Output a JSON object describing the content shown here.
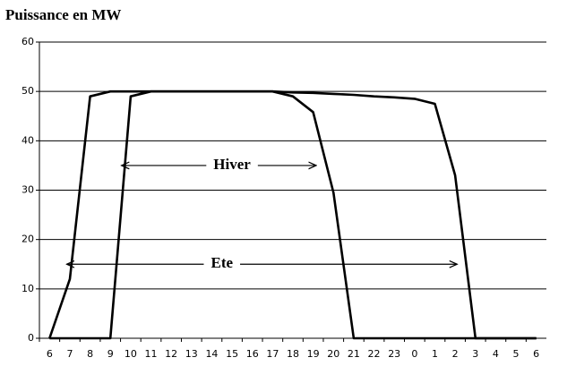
{
  "chart_data": {
    "type": "line",
    "title": "Puissance en MW",
    "categories": [
      "6",
      "7",
      "8",
      "9",
      "10",
      "11",
      "12",
      "13",
      "14",
      "15",
      "16",
      "17",
      "18",
      "19",
      "20",
      "21",
      "22",
      "23",
      "0",
      "1",
      "2",
      "3",
      "4",
      "5",
      "6"
    ],
    "series": [
      {
        "name": "Ete",
        "color": "#000000",
        "values": [
          0,
          12,
          49,
          50,
          50,
          50,
          50,
          50,
          50,
          50,
          50,
          50,
          49.8,
          49.7,
          49.5,
          49.3,
          49,
          48.8,
          48.5,
          47.5,
          33,
          0,
          0,
          0,
          0
        ]
      },
      {
        "name": "Hiver",
        "color": "#000000",
        "values": [
          0,
          0,
          0,
          0,
          49,
          50,
          50,
          50,
          50,
          50,
          50,
          50,
          49,
          45.8,
          29.5,
          0,
          0,
          0,
          0,
          0,
          0,
          0,
          0,
          0,
          0
        ]
      }
    ],
    "ylim": [
      0,
      60
    ],
    "yticks": [
      0,
      10,
      20,
      30,
      40,
      50,
      60
    ],
    "grid": true
  }
}
